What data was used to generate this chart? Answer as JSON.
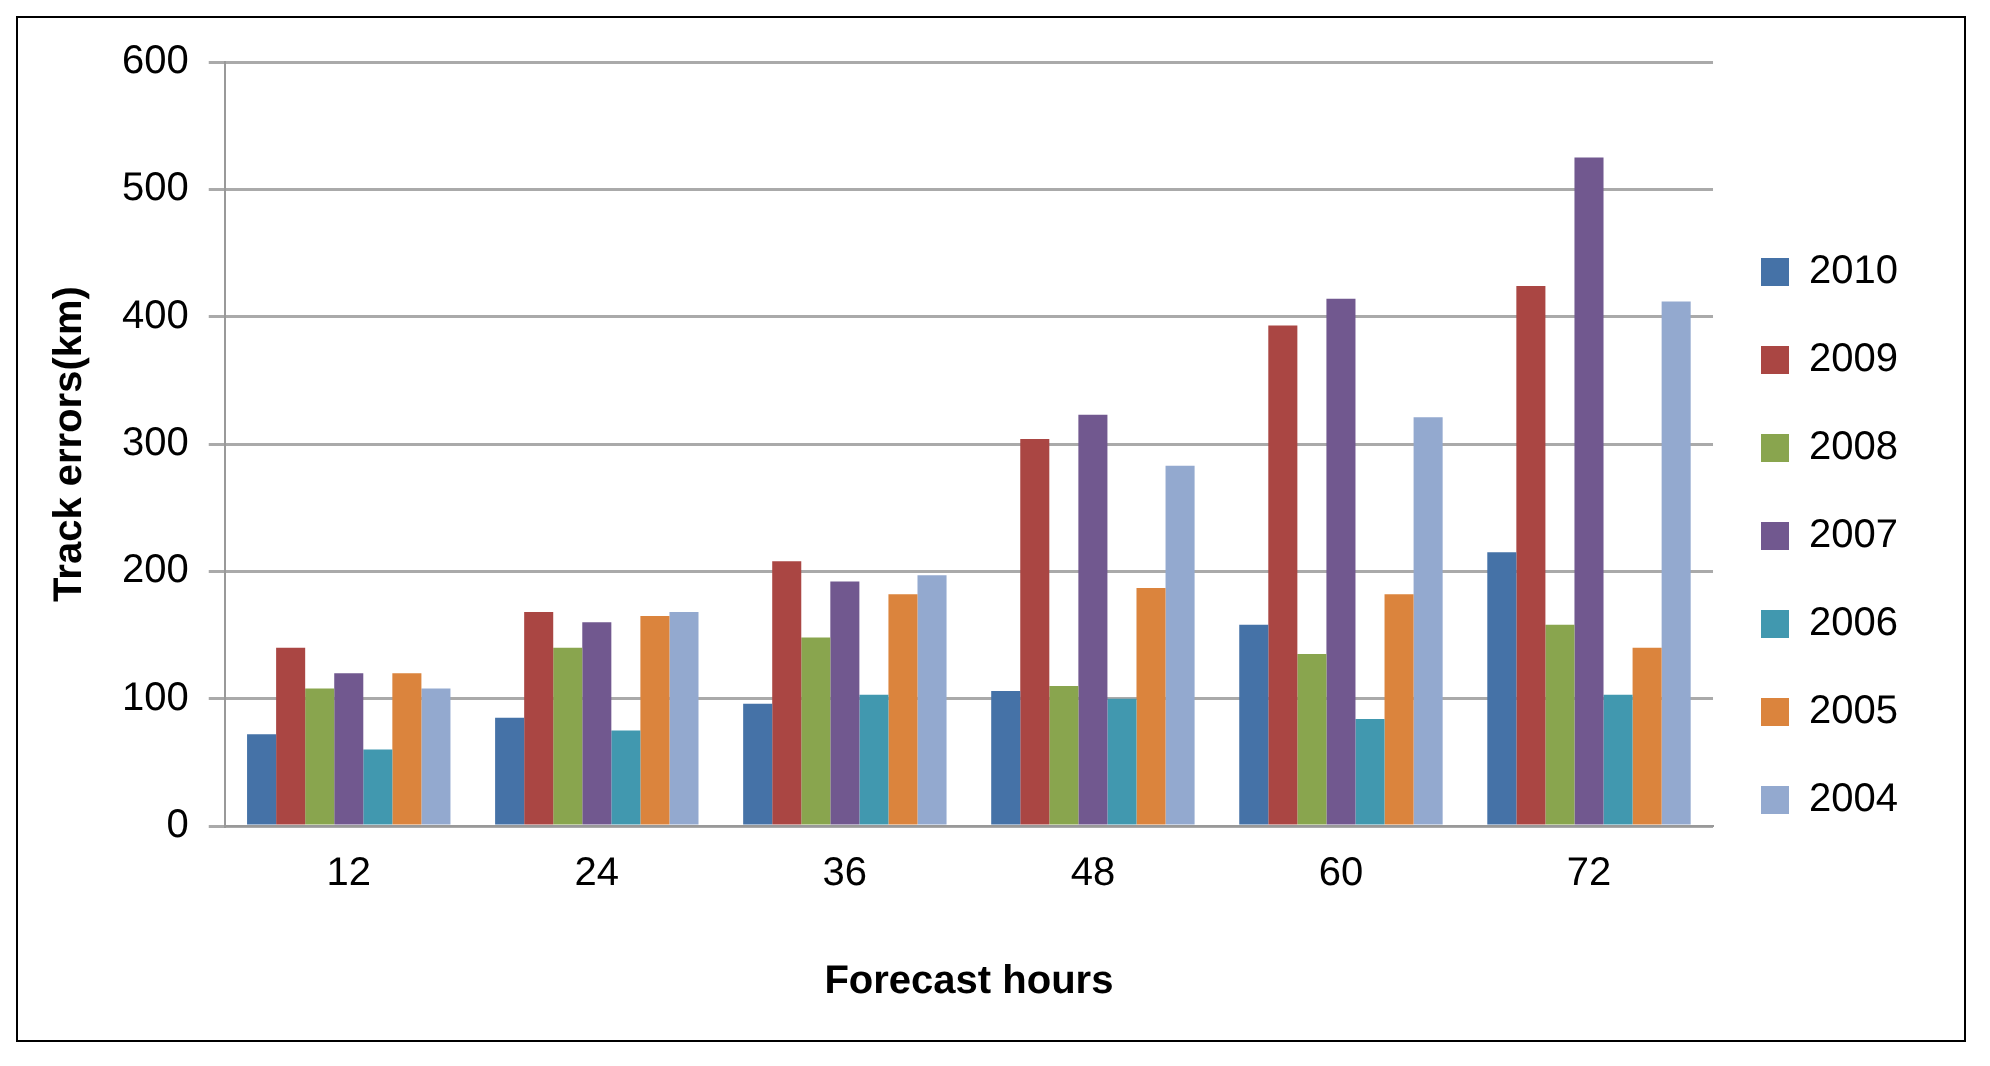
{
  "chart_data": {
    "type": "bar",
    "xlabel": "Forecast hours",
    "ylabel": "Track errors(km)",
    "categories": [
      "12",
      "24",
      "36",
      "48",
      "60",
      "72"
    ],
    "series": [
      {
        "name": "2010",
        "color": "#4572a7",
        "values": [
          72,
          85,
          96,
          106,
          158,
          215
        ]
      },
      {
        "name": "2009",
        "color": "#aa4643",
        "values": [
          140,
          168,
          208,
          304,
          393,
          424
        ]
      },
      {
        "name": "2008",
        "color": "#89a54e",
        "values": [
          108,
          140,
          148,
          110,
          135,
          158
        ]
      },
      {
        "name": "2007",
        "color": "#71588f",
        "values": [
          120,
          160,
          192,
          323,
          414,
          525
        ]
      },
      {
        "name": "2006",
        "color": "#4198af",
        "values": [
          60,
          75,
          103,
          100,
          84,
          103
        ]
      },
      {
        "name": "2005",
        "color": "#db843d",
        "values": [
          120,
          165,
          182,
          187,
          182,
          140
        ]
      },
      {
        "name": "2004",
        "color": "#93a9cf",
        "values": [
          108,
          168,
          197,
          283,
          321,
          412
        ]
      }
    ],
    "ylim": [
      0,
      600
    ],
    "yticks": [
      0,
      100,
      200,
      300,
      400,
      500,
      600
    ],
    "grid": "y",
    "legend": "right"
  }
}
